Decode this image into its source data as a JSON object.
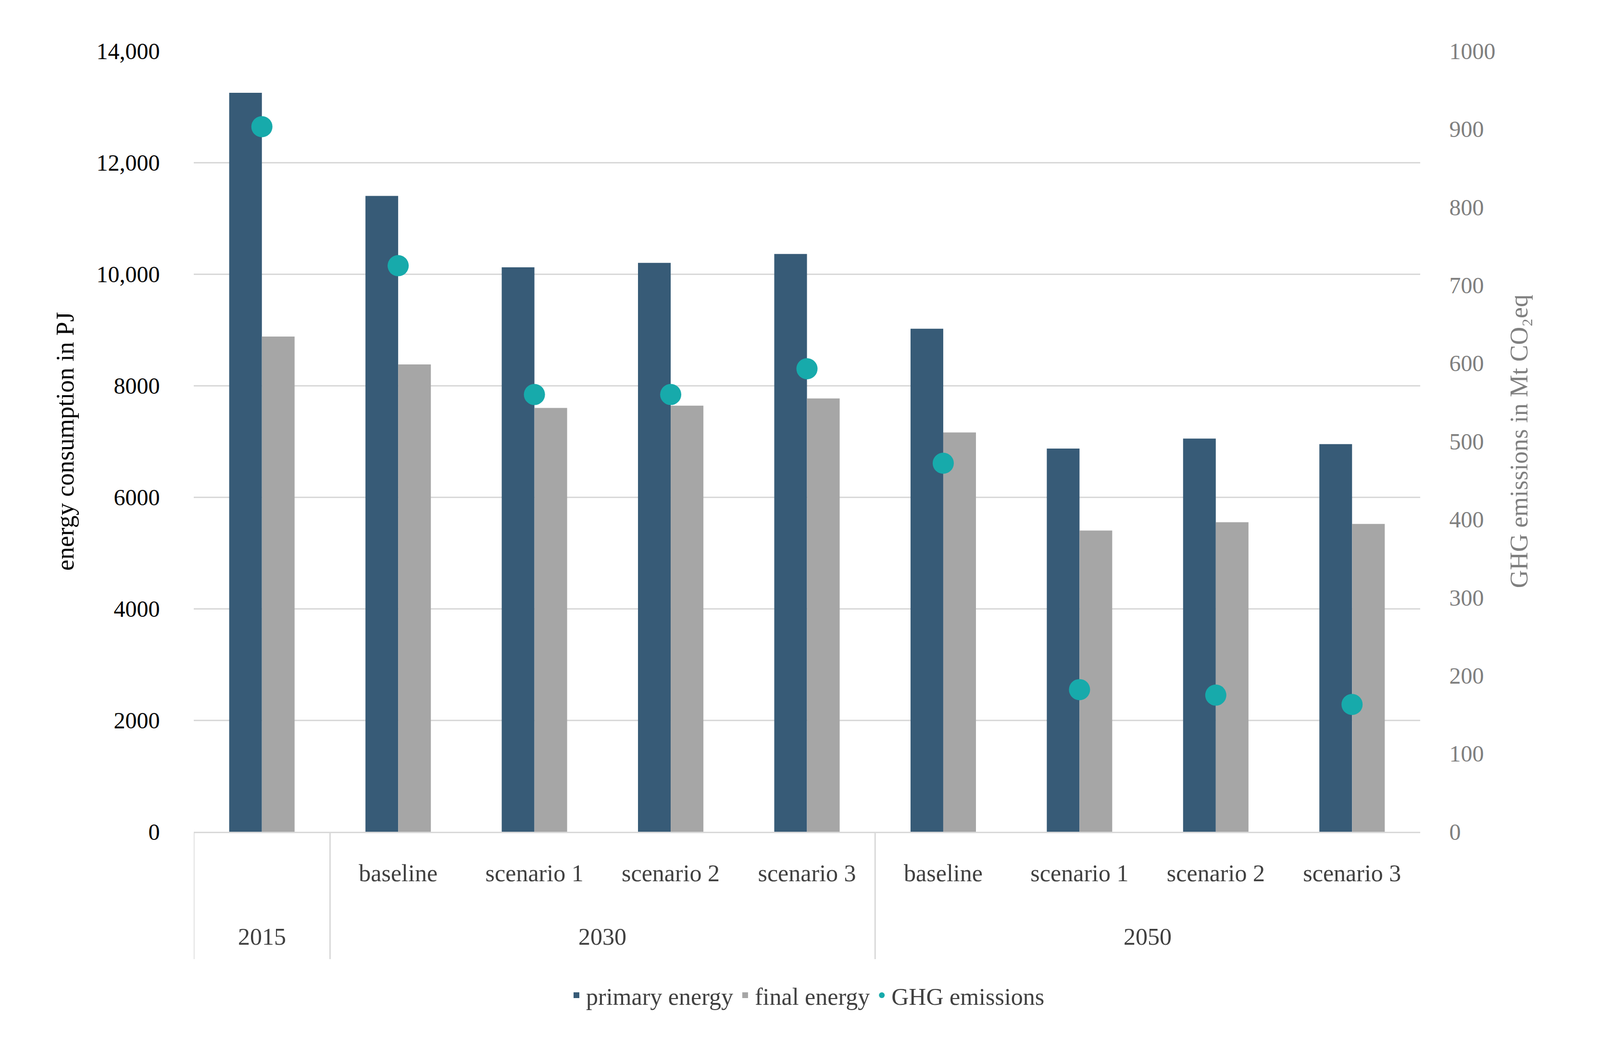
{
  "chart_data": {
    "type": "bar",
    "categories": [
      null,
      "baseline",
      "scenario 1",
      "scenario 2",
      "scenario 3",
      "baseline",
      "scenario 1",
      "scenario 2",
      "scenario 3"
    ],
    "category_groups": [
      "2015",
      "2030",
      "2030",
      "2030",
      "2030",
      "2050",
      "2050",
      "2050",
      "2050"
    ],
    "series": [
      {
        "name": "primary energy",
        "type": "bar",
        "color": "#375b77",
        "values": [
          13250,
          11400,
          10120,
          10200,
          10360,
          9020,
          6870,
          7050,
          6950
        ]
      },
      {
        "name": "final energy",
        "type": "bar",
        "color": "#a6a6a6",
        "values": [
          8880,
          8380,
          7600,
          7640,
          7770,
          7160,
          5400,
          5550,
          5520
        ]
      },
      {
        "name": "GHG emissions",
        "type": "scatter",
        "axis": "y2",
        "marker": "circle",
        "color": "#17aaab",
        "values": [
          903,
          725,
          560,
          560,
          593,
          472,
          182,
          175,
          163
        ]
      }
    ],
    "ylabel": "energy consumption in PJ",
    "y2label": "GHG emissions in Mt CO₂eq",
    "ylim": [
      0,
      14000
    ],
    "yticks": [
      0,
      2000,
      4000,
      6000,
      8000,
      {
        "value": 10000,
        "label": "10,000"
      },
      {
        "value": 12000,
        "label": "12,000"
      },
      {
        "value": 14000,
        "label": "14,000"
      }
    ],
    "y2lim": [
      0,
      1000
    ],
    "y2ticks": [
      0,
      100,
      200,
      300,
      400,
      500,
      600,
      700,
      800,
      900,
      1000
    ],
    "grid": true,
    "legend": "bottom"
  }
}
